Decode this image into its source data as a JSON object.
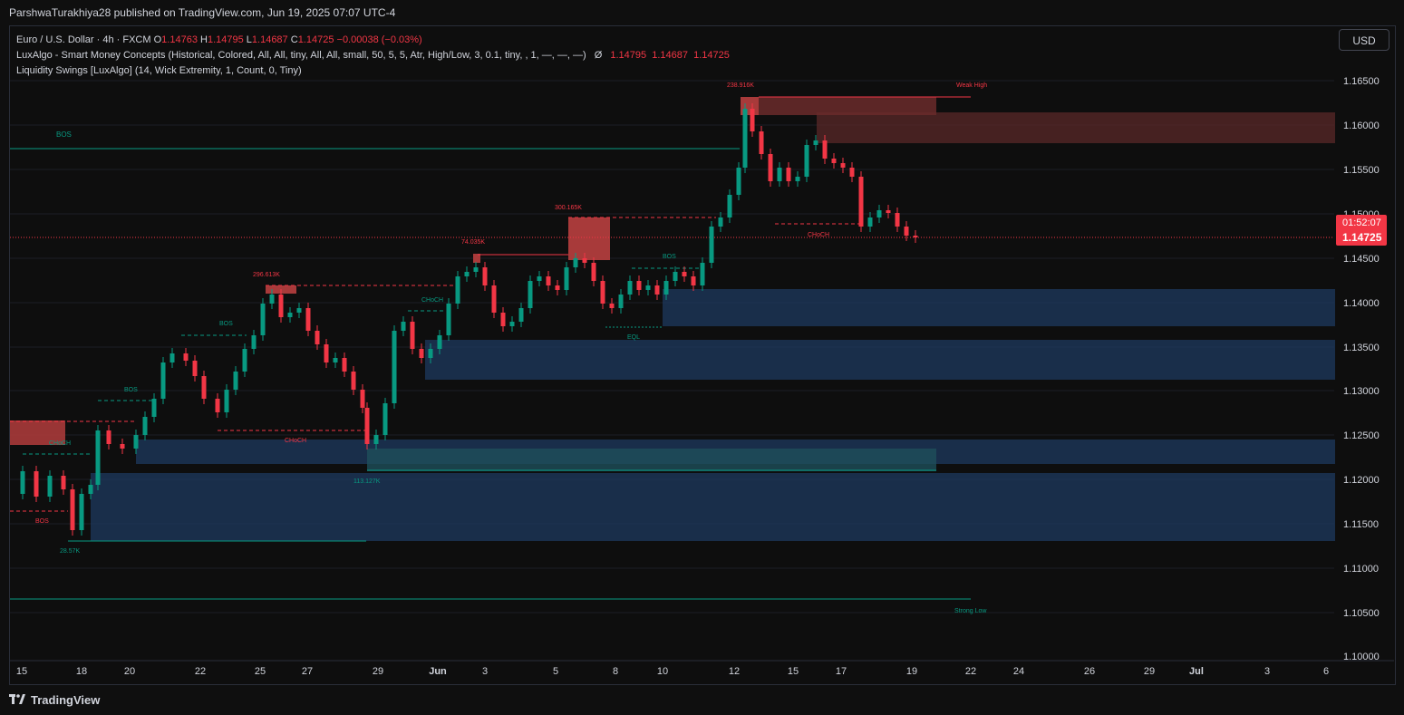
{
  "header": {
    "publisher": "ParshwaTurakhiya28 published on TradingView.com, Jun 19, 2025 07:07 UTC-4"
  },
  "legend": {
    "symbol": "Euro / U.S. Dollar · 4h · FXCM",
    "o_label": "O",
    "o": "1.14763",
    "h_label": "H",
    "h": "1.14795",
    "l_label": "L",
    "l": "1.14687",
    "c_label": "C",
    "c": "1.14725",
    "change": "−0.00038 (−0.03%)",
    "indicator1": "LuxAlgo - Smart Money Concepts (Historical, Colored, All, All, tiny, All, All, small, 50, 5, 5, Atr, High/Low, 3, 0.1, tiny, , 1, —, —, —)",
    "indicator1_symbol": "Ø",
    "indicator1_values": "1.14795  1.14687  1.14725",
    "indicator2": "Liquidity Swings [LuxAlgo] (14, Wick Extremity, 1, Count, 0, Tiny)"
  },
  "currency_button": "USD",
  "price_badge": {
    "countdown": "01:52:07",
    "price": "1.14725",
    "color": "#f23645"
  },
  "price_axis": [
    "1.16500",
    "1.16000",
    "1.15500",
    "1.15000",
    "1.14500",
    "1.14000",
    "1.13500",
    "1.13000",
    "1.12500",
    "1.12000",
    "1.11500",
    "1.11000",
    "1.10500",
    "1.10000"
  ],
  "time_axis": [
    "15",
    "18",
    "20",
    "22",
    "25",
    "27",
    "29",
    "Jun",
    "3",
    "5",
    "8",
    "10",
    "12",
    "15",
    "17",
    "19",
    "22",
    "24",
    "26",
    "29",
    "Jul",
    "3",
    "6"
  ],
  "annotations": {
    "bos_top": "BOS",
    "vol_238": "238.916K",
    "weak_high": "Weak High",
    "vol_300": "300.165K",
    "vol_74": "74.035K",
    "vol_296": "296.613K",
    "bos_mid": "BOS",
    "choch_green": "CHoCH",
    "bos_green2": "BOS",
    "eql": "EQL",
    "choch_red_top": "CHoCH",
    "bos_small": "BOS",
    "choch_left": "CHoCH",
    "choch_red_mid": "CHoCH",
    "vol_113": "113.127K",
    "bos_red_left": "BOS",
    "vol_28": "28.57K",
    "strong_low": "Strong Low"
  },
  "colors": {
    "up": "#089981",
    "down": "#f23645",
    "demand_zone": "#1e3a5f",
    "supply_zone": "#7a2626"
  },
  "footer": {
    "brand": "TradingView"
  }
}
